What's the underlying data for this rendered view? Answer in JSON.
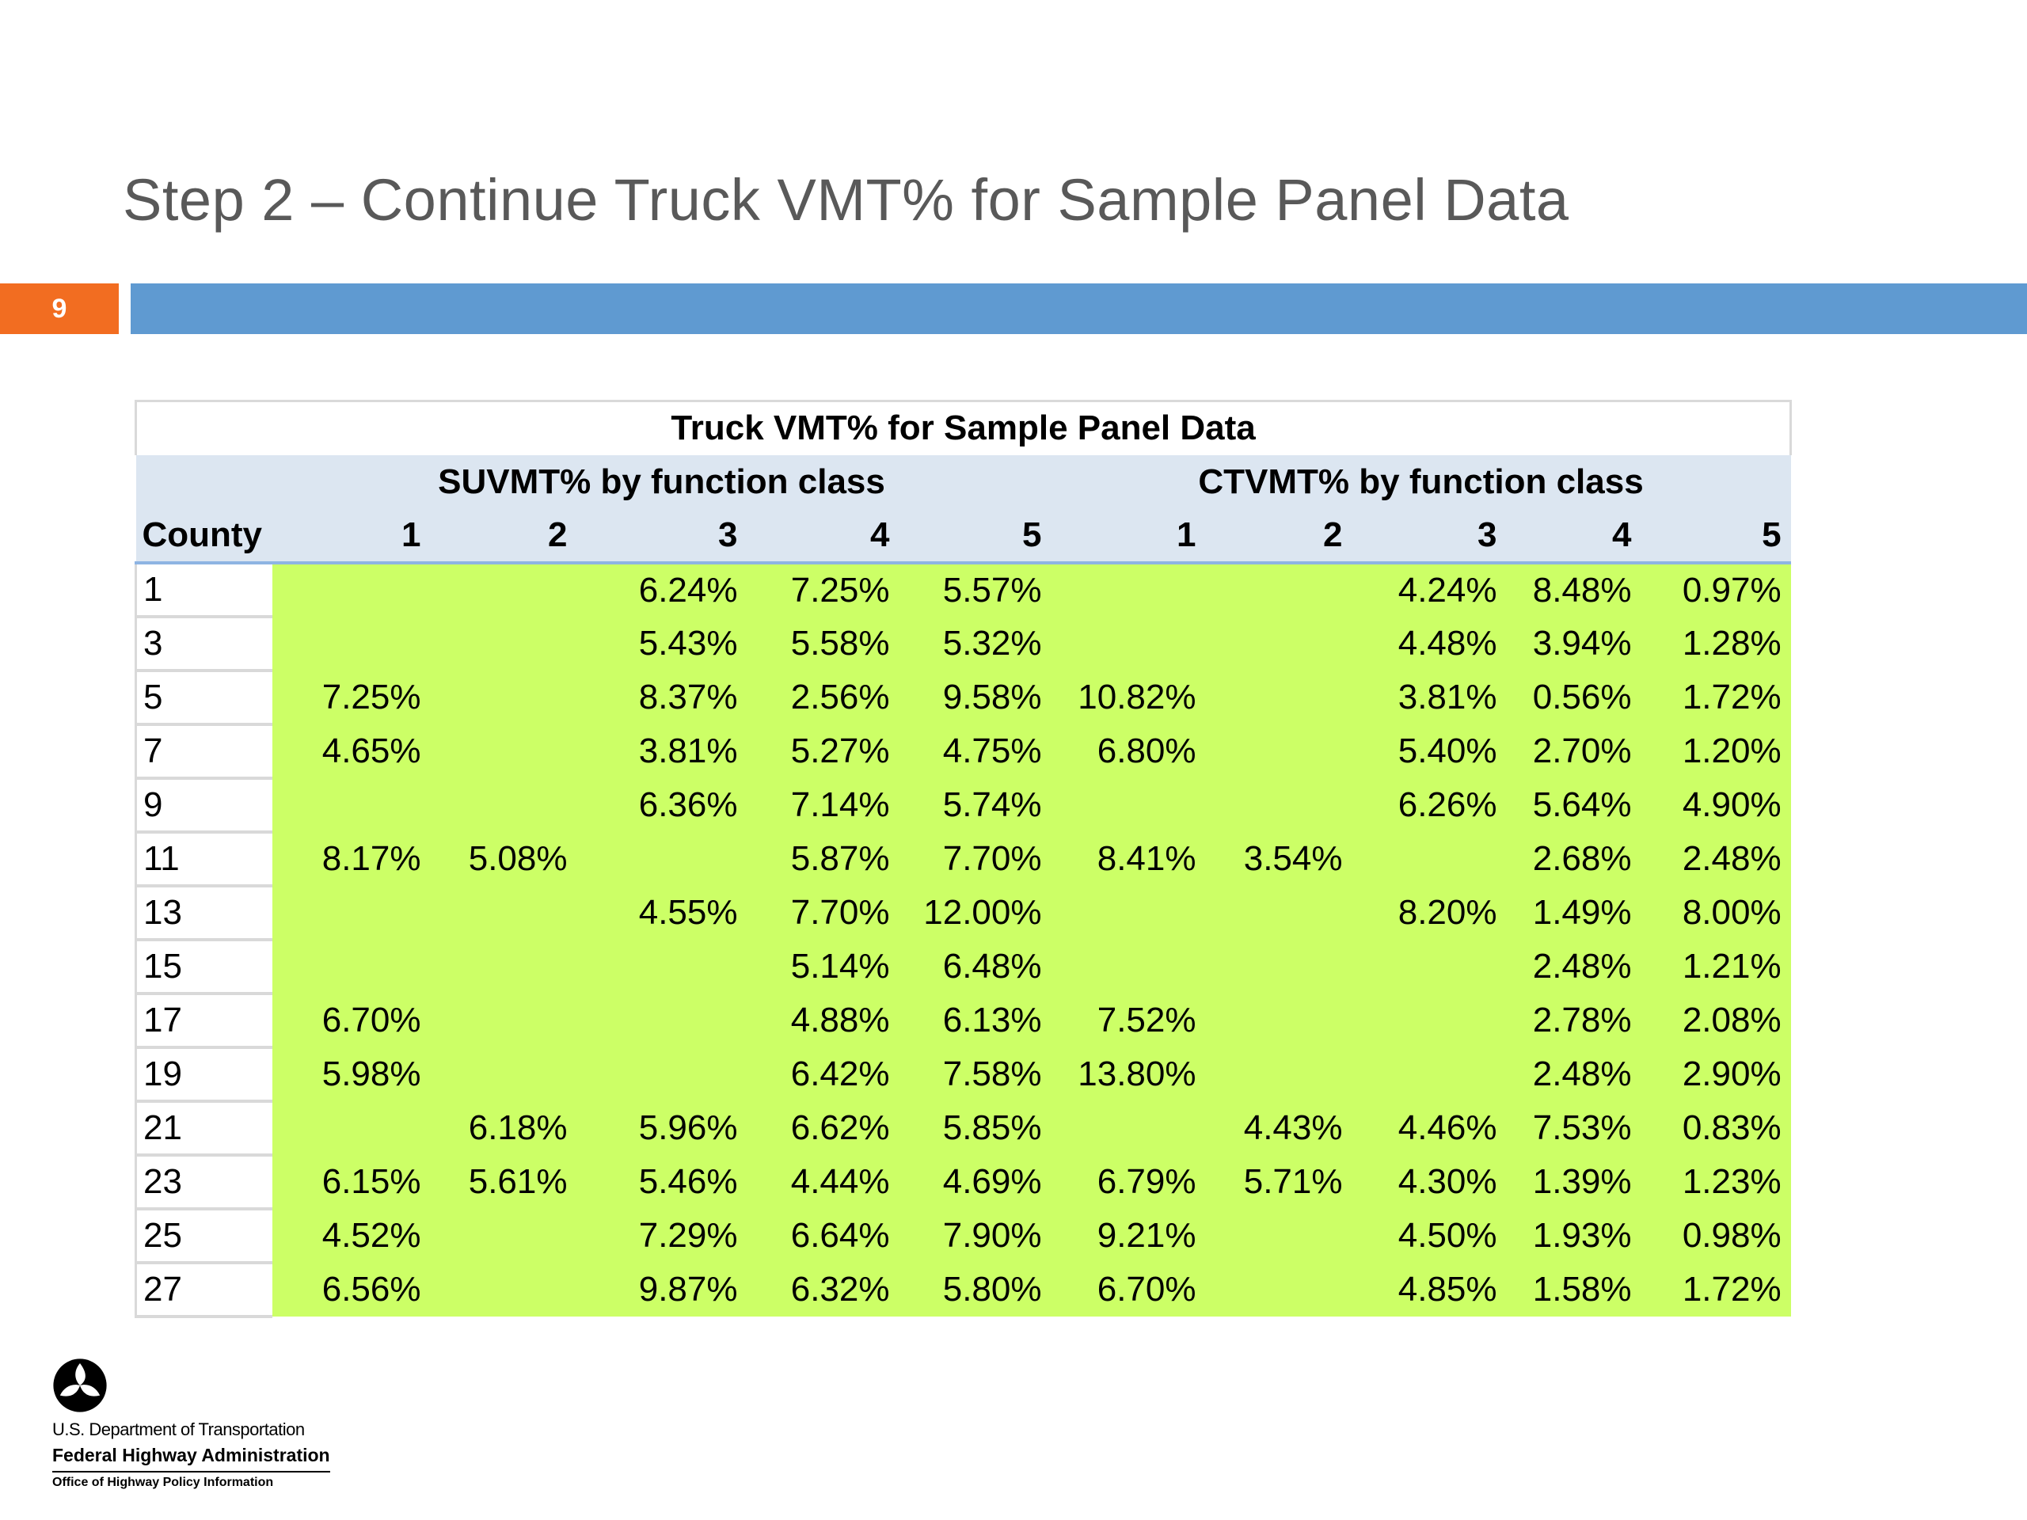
{
  "slide": {
    "title": "Step 2 – Continue Truck VMT% for Sample Panel Data",
    "number": "9",
    "colors": {
      "number_box": "#f26d21",
      "title_bar": "#5f9ad1",
      "table_header_fill": "#dce6f1",
      "data_fill": "#ccff66"
    }
  },
  "table": {
    "title": "Truck VMT% for Sample Panel Data",
    "group_su": "SUVMT% by function class",
    "group_ct": "CTVMT% by function class",
    "headers": [
      "County",
      "1",
      "2",
      "3",
      "4",
      "5",
      "1",
      "2",
      "3",
      "4",
      "5"
    ],
    "rows": [
      {
        "county": "1",
        "values": [
          "",
          "",
          "6.24%",
          "7.25%",
          "5.57%",
          "",
          "",
          "4.24%",
          "8.48%",
          "0.97%"
        ]
      },
      {
        "county": "3",
        "values": [
          "",
          "",
          "5.43%",
          "5.58%",
          "5.32%",
          "",
          "",
          "4.48%",
          "3.94%",
          "1.28%"
        ]
      },
      {
        "county": "5",
        "values": [
          "7.25%",
          "",
          "8.37%",
          "2.56%",
          "9.58%",
          "10.82%",
          "",
          "3.81%",
          "0.56%",
          "1.72%"
        ]
      },
      {
        "county": "7",
        "values": [
          "4.65%",
          "",
          "3.81%",
          "5.27%",
          "4.75%",
          "6.80%",
          "",
          "5.40%",
          "2.70%",
          "1.20%"
        ]
      },
      {
        "county": "9",
        "values": [
          "",
          "",
          "6.36%",
          "7.14%",
          "5.74%",
          "",
          "",
          "6.26%",
          "5.64%",
          "4.90%"
        ]
      },
      {
        "county": "11",
        "values": [
          "8.17%",
          "5.08%",
          "",
          "5.87%",
          "7.70%",
          "8.41%",
          "3.54%",
          "",
          "2.68%",
          "2.48%"
        ]
      },
      {
        "county": "13",
        "values": [
          "",
          "",
          "4.55%",
          "7.70%",
          "12.00%",
          "",
          "",
          "8.20%",
          "1.49%",
          "8.00%"
        ]
      },
      {
        "county": "15",
        "values": [
          "",
          "",
          "",
          "5.14%",
          "6.48%",
          "",
          "",
          "",
          "2.48%",
          "1.21%"
        ]
      },
      {
        "county": "17",
        "values": [
          "6.70%",
          "",
          "",
          "4.88%",
          "6.13%",
          "7.52%",
          "",
          "",
          "2.78%",
          "2.08%"
        ]
      },
      {
        "county": "19",
        "values": [
          "5.98%",
          "",
          "",
          "6.42%",
          "7.58%",
          "13.80%",
          "",
          "",
          "2.48%",
          "2.90%"
        ]
      },
      {
        "county": "21",
        "values": [
          "",
          "6.18%",
          "5.96%",
          "6.62%",
          "5.85%",
          "",
          "4.43%",
          "4.46%",
          "7.53%",
          "0.83%"
        ]
      },
      {
        "county": "23",
        "values": [
          "6.15%",
          "5.61%",
          "5.46%",
          "4.44%",
          "4.69%",
          "6.79%",
          "5.71%",
          "4.30%",
          "1.39%",
          "1.23%"
        ]
      },
      {
        "county": "25",
        "values": [
          "4.52%",
          "",
          "7.29%",
          "6.64%",
          "7.90%",
          "9.21%",
          "",
          "4.50%",
          "1.93%",
          "0.98%"
        ]
      },
      {
        "county": "27",
        "values": [
          "6.56%",
          "",
          "9.87%",
          "6.32%",
          "5.80%",
          "6.70%",
          "",
          "4.85%",
          "1.58%",
          "1.72%"
        ]
      }
    ]
  },
  "footer": {
    "logo_icon": "dot-tri-star-logo-icon",
    "line1": "U.S. Department of Transportation",
    "line2": "Federal Highway Administration",
    "line3": "Office of Highway Policy Information"
  }
}
